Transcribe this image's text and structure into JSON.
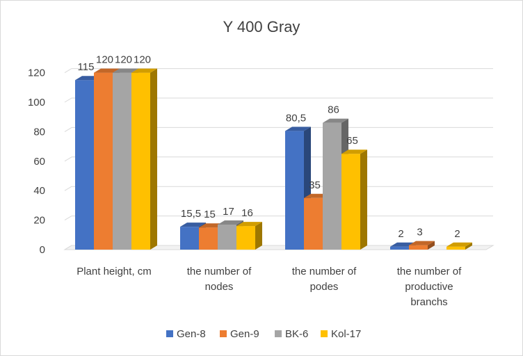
{
  "chart_data": {
    "type": "bar",
    "title": "Y  400 Gray",
    "categories": [
      [
        "Plant height, cm"
      ],
      [
        "the number of",
        "nodes"
      ],
      [
        "the number of",
        "podes"
      ],
      [
        "the number of",
        "productive",
        "branchs"
      ]
    ],
    "series": [
      {
        "name": "Gen-8",
        "color": "#4472C4",
        "values": [
          115,
          15.5,
          80.5,
          2
        ],
        "labels": [
          "115",
          "15,5",
          "80,5",
          "2"
        ]
      },
      {
        "name": "Gen-9",
        "color": "#ED7D31",
        "values": [
          120,
          15,
          35,
          3
        ],
        "labels": [
          "120",
          "15",
          "35",
          "3"
        ]
      },
      {
        "name": "BK-6",
        "color": "#A5A5A5",
        "values": [
          120,
          17,
          86,
          0
        ],
        "labels": [
          "120",
          "17",
          "86",
          ""
        ]
      },
      {
        "name": "Kol-17",
        "color": "#FFC000",
        "values": [
          120,
          16,
          65,
          2
        ],
        "labels": [
          "120",
          "16",
          "65",
          "2"
        ]
      }
    ],
    "ylim": [
      0,
      120
    ],
    "yticks": [
      0,
      20,
      40,
      60,
      80,
      100,
      120
    ],
    "grid": true,
    "legend": "bottom",
    "style": "3d-clustered-column"
  }
}
